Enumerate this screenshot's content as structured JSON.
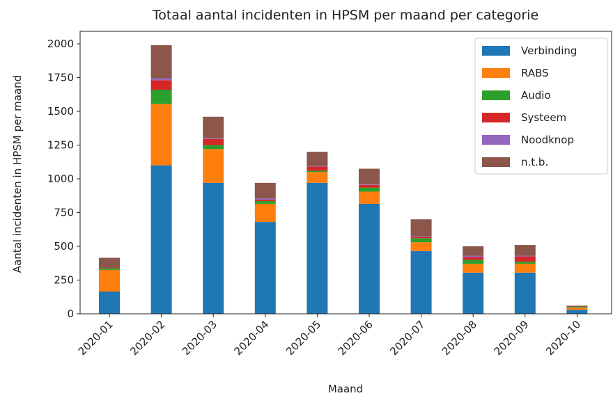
{
  "chart_data": {
    "type": "stacked_bar",
    "title": "Totaal aantal incidenten in HPSM per maand per categorie",
    "xlabel": "Maand",
    "ylabel": "Aantal incidenten in HPSM per maand",
    "categories": [
      "2020-01",
      "2020-02",
      "2020-03",
      "2020-04",
      "2020-05",
      "2020-06",
      "2020-07",
      "2020-08",
      "2020-09",
      "2020-10"
    ],
    "series": [
      {
        "name": "Verbinding",
        "color": "#1f77b4",
        "values": [
          165,
          1100,
          970,
          680,
          970,
          815,
          465,
          305,
          305,
          30
        ]
      },
      {
        "name": "RABS",
        "color": "#ff7f0e",
        "values": [
          160,
          455,
          250,
          135,
          80,
          90,
          65,
          65,
          65,
          15
        ]
      },
      {
        "name": "Audio",
        "color": "#2ca02c",
        "values": [
          12,
          105,
          30,
          20,
          10,
          30,
          30,
          30,
          15,
          5
        ]
      },
      {
        "name": "Systeem",
        "color": "#d62728",
        "values": [
          3,
          70,
          45,
          10,
          30,
          20,
          10,
          20,
          40,
          0
        ]
      },
      {
        "name": "Noodknop",
        "color": "#9467bd",
        "values": [
          0,
          15,
          5,
          10,
          5,
          5,
          5,
          10,
          5,
          0
        ]
      },
      {
        "name": "n.t.b.",
        "color": "#8c564b",
        "values": [
          75,
          245,
          160,
          115,
          105,
          115,
          125,
          70,
          80,
          10
        ]
      }
    ],
    "ylim": [
      0,
      2093
    ],
    "yticks": [
      0,
      250,
      500,
      750,
      1000,
      1250,
      1500,
      1750,
      2000
    ],
    "legend": "upper right"
  }
}
